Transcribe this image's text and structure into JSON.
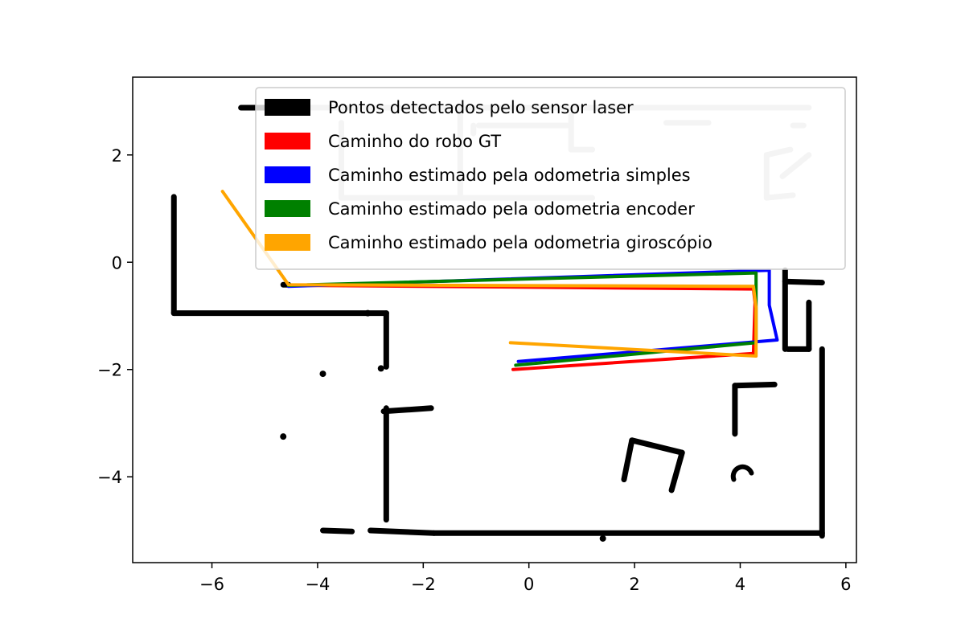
{
  "chart_data": {
    "type": "scatter",
    "title": "",
    "xlabel": "",
    "ylabel": "",
    "xlim": [
      -7.5,
      6.2
    ],
    "ylim": [
      -5.6,
      3.45
    ],
    "xticks": [
      -6,
      -4,
      -2,
      0,
      2,
      4,
      6
    ],
    "xtick_labels": [
      "−6",
      "−4",
      "−2",
      "0",
      "2",
      "4",
      "6"
    ],
    "yticks": [
      -4,
      -2,
      0,
      2
    ],
    "ytick_labels": [
      "−4",
      "−2",
      "0",
      "2"
    ],
    "grid": false,
    "legend_position": "top-right",
    "laser_points": {
      "name": "Pontos detectados pelo sensor laser",
      "color": "#000000",
      "segments": [
        [
          [
            -6.72,
            1.22
          ],
          [
            -6.72,
            -0.95
          ]
        ],
        [
          [
            -6.72,
            -0.95
          ],
          [
            -2.7,
            -0.95
          ]
        ],
        [
          [
            -2.7,
            -0.95
          ],
          [
            -2.7,
            -1.95
          ]
        ],
        [
          [
            -2.75,
            -2.78
          ],
          [
            -1.85,
            -2.72
          ]
        ],
        [
          [
            -2.7,
            -2.72
          ],
          [
            -2.7,
            -4.8
          ]
        ],
        [
          [
            -3.9,
            -5.0
          ],
          [
            -3.35,
            -5.02
          ]
        ],
        [
          [
            -3.0,
            -5.0
          ],
          [
            -1.8,
            -5.05
          ]
        ],
        [
          [
            -1.8,
            -5.05
          ],
          [
            5.55,
            -5.05
          ]
        ],
        [
          [
            -4.65,
            -0.42
          ],
          [
            -4.55,
            -0.42
          ]
        ],
        [
          [
            1.95,
            -3.32
          ],
          [
            2.9,
            -3.55
          ]
        ],
        [
          [
            1.95,
            -3.32
          ],
          [
            1.8,
            -4.05
          ]
        ],
        [
          [
            2.9,
            -3.55
          ],
          [
            2.7,
            -4.25
          ]
        ],
        [
          [
            3.9,
            -2.3
          ],
          [
            4.65,
            -2.28
          ]
        ],
        [
          [
            3.9,
            -2.3
          ],
          [
            3.9,
            -3.2
          ]
        ],
        [
          [
            4.85,
            -0.15
          ],
          [
            4.85,
            -1.62
          ]
        ],
        [
          [
            4.85,
            -0.36
          ],
          [
            5.55,
            -0.38
          ]
        ],
        [
          [
            4.9,
            -1.62
          ],
          [
            5.3,
            -1.62
          ]
        ],
        [
          [
            5.55,
            -1.62
          ],
          [
            5.55,
            -5.1
          ]
        ],
        [
          [
            5.3,
            -0.75
          ],
          [
            5.3,
            -1.62
          ]
        ],
        [
          [
            -5.45,
            2.88
          ],
          [
            -4.9,
            2.88
          ]
        ]
      ],
      "isolated_points": [
        [
          -3.9,
          -2.08
        ],
        [
          -2.8,
          -1.98
        ],
        [
          -4.65,
          -3.25
        ],
        [
          -3.05,
          -0.95
        ],
        [
          1.4,
          -5.15
        ]
      ],
      "arcs": [
        [
          4.0,
          -3.9
        ]
      ]
    },
    "gray_structure": {
      "color": "#c8c8c8",
      "segments": [
        [
          [
            -4.9,
            2.88
          ],
          [
            5.3,
            2.88
          ]
        ],
        [
          [
            -3.55,
            2.6
          ],
          [
            -3.55,
            1.2
          ]
        ],
        [
          [
            -3.55,
            1.2
          ],
          [
            1.2,
            1.2
          ]
        ],
        [
          [
            -1.3,
            2.88
          ],
          [
            -1.3,
            1.2
          ]
        ],
        [
          [
            -0.95,
            2.55
          ],
          [
            0.75,
            2.55
          ]
        ],
        [
          [
            -1.05,
            2.55
          ],
          [
            -1.05,
            2.4
          ]
        ],
        [
          [
            0.8,
            2.75
          ],
          [
            0.8,
            2.1
          ]
        ],
        [
          [
            0.8,
            2.1
          ],
          [
            1.2,
            2.1
          ]
        ],
        [
          [
            2.6,
            2.6
          ],
          [
            3.4,
            2.6
          ]
        ],
        [
          [
            4.5,
            2.0
          ],
          [
            4.95,
            2.1
          ]
        ],
        [
          [
            4.5,
            2.0
          ],
          [
            4.5,
            1.2
          ]
        ],
        [
          [
            4.5,
            1.2
          ],
          [
            5.0,
            1.25
          ]
        ],
        [
          [
            4.8,
            1.6
          ],
          [
            5.3,
            2.0
          ]
        ],
        [
          [
            5.0,
            2.55
          ],
          [
            5.2,
            2.55
          ]
        ]
      ]
    },
    "series": [
      {
        "name": "Caminho do robo GT",
        "color": "#ff0000",
        "x": [
          -0.3,
          4.25,
          4.28,
          4.25,
          -4.5
        ],
        "y": [
          -2.0,
          -1.7,
          -0.75,
          -0.5,
          -0.43
        ]
      },
      {
        "name": "Caminho estimado pela odometria simples",
        "color": "#0000ff",
        "x": [
          -0.2,
          4.7,
          4.55,
          4.55,
          -4.55
        ],
        "y": [
          -1.85,
          -1.45,
          -0.8,
          -0.15,
          -0.45
        ]
      },
      {
        "name": "Caminho estimado pela odometria encoder",
        "color": "#008000",
        "x": [
          -0.25,
          4.3,
          4.3,
          4.3,
          -4.55
        ],
        "y": [
          -1.92,
          -1.5,
          -0.85,
          -0.2,
          -0.43
        ]
      },
      {
        "name": "Caminho estimado pela odometria giroscópio",
        "color": "#ffa500",
        "x": [
          -0.35,
          4.3,
          4.3,
          4.25,
          -4.55,
          -5.8
        ],
        "y": [
          -1.5,
          -1.75,
          -0.85,
          -0.45,
          -0.42,
          1.32
        ]
      }
    ],
    "legend": [
      {
        "label": "Pontos detectados pelo sensor laser",
        "color": "#000000"
      },
      {
        "label": "Caminho do robo GT",
        "color": "#ff0000"
      },
      {
        "label": "Caminho estimado pela odometria simples",
        "color": "#0000ff"
      },
      {
        "label": "Caminho estimado pela odometria encoder",
        "color": "#008000"
      },
      {
        "label": "Caminho estimado pela odometria giroscópio",
        "color": "#ffa500"
      }
    ]
  }
}
